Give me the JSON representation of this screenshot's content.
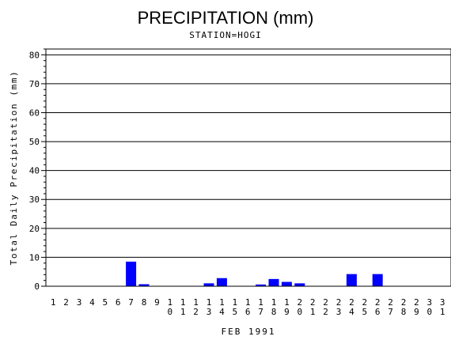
{
  "chart_data": {
    "type": "bar",
    "title": "PRECIPITATION (mm)",
    "subtitle": "STATION=HOGI",
    "xlabel": "FEB 1991",
    "ylabel": "Total Daily Precipitation (mm)",
    "ylim": [
      0,
      82
    ],
    "yticks": [
      0,
      10,
      20,
      30,
      40,
      50,
      60,
      70,
      80
    ],
    "grid": true,
    "bar_color": "#0000ff",
    "categories": [
      "1",
      "2",
      "3",
      "4",
      "5",
      "6",
      "7",
      "8",
      "9",
      "10",
      "11",
      "12",
      "13",
      "14",
      "15",
      "16",
      "17",
      "18",
      "19",
      "20",
      "21",
      "22",
      "23",
      "24",
      "25",
      "26",
      "27",
      "28",
      "29",
      "30",
      "31"
    ],
    "values": [
      0,
      0,
      0,
      0,
      0,
      0,
      8.5,
      0.7,
      0,
      0,
      0,
      0,
      1.0,
      2.8,
      0,
      0,
      0.6,
      2.5,
      1.5,
      1.0,
      0,
      0,
      0,
      4.2,
      0,
      4.2,
      0,
      0,
      0,
      0,
      0
    ]
  }
}
